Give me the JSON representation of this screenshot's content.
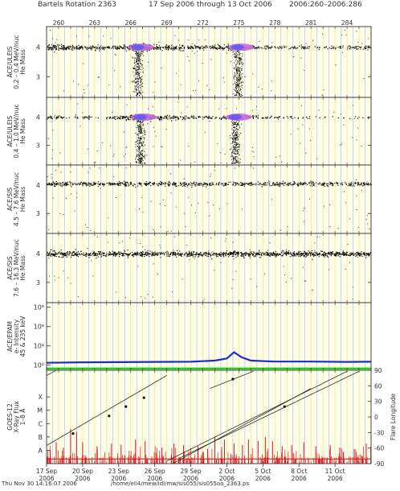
{
  "header": {
    "title": "Bartels Rotation 2363",
    "date_range": "17 Sep 2006  through 13 Oct 2006",
    "doy_range": "2006:260–2006:286"
  },
  "footer": {
    "timestamp": "Thu Nov 30 14:16:07 2006",
    "path": "/home/eli4/mew/idl/mw/sis055/sis055oo_2363.ps"
  },
  "colors": {
    "panel_bg": "#fefde8",
    "grid_yellow": "#e9e57a",
    "grid_blue": "#a5b8e8",
    "density_hi": "#6a5cf0",
    "density_mid": "#c86bd8",
    "epam_line": "#1a2fc4",
    "green_line": "#19d419",
    "xray_red": "#e0141e"
  },
  "chart_data": [
    {
      "type": "scatter",
      "id": "p1",
      "ylabel_lines": [
        "ACE/ULEIS",
        "0.2 – 0.4 MeV/nuc",
        "He Mass"
      ],
      "ylim": [
        2.3,
        4.7
      ],
      "yticks": [
        "3",
        "4"
      ],
      "xlim": [
        259,
        286
      ],
      "top_doy_ticks": [
        "260",
        "263",
        "266",
        "269",
        "272",
        "275",
        "278",
        "281",
        "284"
      ],
      "band_center": 4.0,
      "activity": [
        {
          "x": 259.5,
          "level": 0.9
        },
        {
          "x": 261.5,
          "level": 0.7
        },
        {
          "x": 264,
          "level": 0.5
        },
        {
          "x": 266.5,
          "level": 1.0
        },
        {
          "x": 269,
          "level": 0.8
        },
        {
          "x": 272,
          "level": 0.4
        },
        {
          "x": 274.5,
          "level": 0.9
        },
        {
          "x": 277,
          "level": 0.4
        },
        {
          "x": 281,
          "level": 0.25
        },
        {
          "x": 285.5,
          "level": 0.3
        }
      ],
      "dense_peaks": [
        266.6,
        274.9
      ]
    },
    {
      "type": "scatter",
      "id": "p2",
      "ylabel_lines": [
        "ACE/ULEIS",
        "0.4 – 1.0 MeV/nuc",
        "He Mass"
      ],
      "ylim": [
        2.3,
        4.7
      ],
      "yticks": [
        "3",
        "4"
      ],
      "xlim": [
        259,
        286
      ],
      "band_center": 4.0,
      "activity": [
        {
          "x": 259.5,
          "level": 0.25
        },
        {
          "x": 262,
          "level": 0.2
        },
        {
          "x": 264,
          "level": 0.15
        },
        {
          "x": 266.5,
          "level": 0.9
        },
        {
          "x": 269,
          "level": 0.6
        },
        {
          "x": 272,
          "level": 0.15
        },
        {
          "x": 274.5,
          "level": 0.7
        },
        {
          "x": 277,
          "level": 0.2
        },
        {
          "x": 282,
          "level": 0.08
        }
      ],
      "dense_peaks": [
        266.8,
        274.7
      ]
    },
    {
      "type": "scatter",
      "id": "p3",
      "ylabel_lines": [
        "ACE/SIS",
        "4.5 – 7.6 MeV/nuc",
        "He Mass"
      ],
      "ylim": [
        2.3,
        4.7
      ],
      "yticks": [
        "3",
        "4"
      ],
      "xlim": [
        259,
        286
      ],
      "band_center": 4.05,
      "activity": [
        {
          "x": 259,
          "level": 0.5
        },
        {
          "x": 286,
          "level": 0.5
        }
      ],
      "dense_peaks": []
    },
    {
      "type": "scatter",
      "id": "p4",
      "ylabel_lines": [
        "ACE/SIS",
        "7.6 – 16.3 MeV/nuc",
        "He Mass"
      ],
      "ylim": [
        2.3,
        4.7
      ],
      "yticks": [
        "3",
        "4"
      ],
      "xlim": [
        259,
        286
      ],
      "band_center": 4.0,
      "activity": [
        {
          "x": 259,
          "level": 0.85
        },
        {
          "x": 286,
          "level": 0.85
        }
      ],
      "dense_peaks": []
    },
    {
      "type": "line",
      "id": "p5",
      "ylabel_lines": [
        "ACE/EPAM",
        "e- Intensity",
        "45 & 235 keV"
      ],
      "ylog": true,
      "ylim": [
        30,
        300000000
      ],
      "yticks": [
        {
          "value": 100,
          "label": "10²"
        },
        {
          "value": 10000,
          "label": "10⁴"
        },
        {
          "value": 1000000,
          "label": "10⁶"
        },
        {
          "value": 100000000,
          "label": "10⁸"
        }
      ],
      "xlim": [
        259,
        286
      ],
      "series": [
        {
          "color": "#1a2fc4",
          "points": [
            [
              259,
              180
            ],
            [
              262,
              200
            ],
            [
              265,
              210
            ],
            [
              268,
              220
            ],
            [
              271,
              230
            ],
            [
              273,
              300
            ],
            [
              274,
              500
            ],
            [
              274.6,
              2200
            ],
            [
              275.2,
              700
            ],
            [
              276,
              300
            ],
            [
              278,
              240
            ],
            [
              281,
              240
            ],
            [
              284,
              220
            ],
            [
              286,
              230
            ]
          ]
        },
        {
          "color": "#19d419",
          "points": [
            [
              259,
              45
            ],
            [
              286,
              45
            ]
          ]
        }
      ]
    },
    {
      "type": "line",
      "id": "p6",
      "ylabel_lines": [
        "GOES-12",
        "X-Ray Flux",
        "1–8 Å"
      ],
      "ylim": [
        0,
        7
      ],
      "yticks": [
        "A",
        "B",
        "C",
        "M",
        "X"
      ],
      "right_axis_label": "Flare Longitude",
      "right_ylim": [
        -90,
        90
      ],
      "right_yticks": [
        "90",
        "60",
        "30",
        "0",
        "-30",
        "-60",
        "-90"
      ],
      "xlim": [
        259,
        286
      ],
      "date_ticks": [
        {
          "x": 259,
          "label": "17 Sep",
          "year": "2006"
        },
        {
          "x": 262,
          "label": "20 Sep",
          "year": "2006"
        },
        {
          "x": 265,
          "label": "23 Sep",
          "year": "2006"
        },
        {
          "x": 268,
          "label": "26 Sep",
          "year": "2006"
        },
        {
          "x": 271,
          "label": "29 Sep",
          "year": "2006"
        },
        {
          "x": 274,
          "label": "2 Oct",
          "year": "2006"
        },
        {
          "x": 277,
          "label": "5 Oct",
          "year": "2006"
        },
        {
          "x": 280,
          "label": "8 Oct",
          "year": "2006"
        },
        {
          "x": 283,
          "label": "11 Oct",
          "year": "2006"
        }
      ],
      "flux_points": [
        [
          259.3,
          1.0
        ],
        [
          259.8,
          1.6
        ],
        [
          260.4,
          1.2
        ],
        [
          261.0,
          2.6
        ],
        [
          261.5,
          2.4
        ],
        [
          262.0,
          1.6
        ],
        [
          263.2,
          1.3
        ],
        [
          264.4,
          1.5
        ],
        [
          265.2,
          1.4
        ],
        [
          266.4,
          1.8
        ],
        [
          267.2,
          1.7
        ],
        [
          268.6,
          1.2
        ],
        [
          269.6,
          1.5
        ],
        [
          270.4,
          1.4
        ],
        [
          271.6,
          1.3
        ],
        [
          272.4,
          1.1
        ],
        [
          273.0,
          2.0
        ],
        [
          273.8,
          1.8
        ],
        [
          274.6,
          1.5
        ],
        [
          275.3,
          1.4
        ],
        [
          275.8,
          1.8
        ],
        [
          276.6,
          1.7
        ],
        [
          277.2,
          2.0
        ],
        [
          277.8,
          1.7
        ],
        [
          278.6,
          1.3
        ],
        [
          279.4,
          1.4
        ],
        [
          280.4,
          1.6
        ],
        [
          281.4,
          1.3
        ],
        [
          282.6,
          1.4
        ],
        [
          283.4,
          1.2
        ],
        [
          284.6,
          1.1
        ],
        [
          285.6,
          1.5
        ]
      ],
      "flare_tracks": [
        {
          "x1": 259.0,
          "y1": -55,
          "x2": 269.0,
          "y2": 80
        },
        {
          "x1": 259.0,
          "y1": 80,
          "x2": 259.8,
          "y2": 90
        },
        {
          "x1": 272.6,
          "y1": 55,
          "x2": 276.2,
          "y2": 88
        },
        {
          "x1": 270.0,
          "y1": -80,
          "x2": 285.0,
          "y2": 88
        },
        {
          "x1": 269.0,
          "y1": -85,
          "x2": 284.0,
          "y2": 88
        },
        {
          "x1": 269.5,
          "y1": -90,
          "x2": 281.0,
          "y2": 55
        }
      ],
      "flare_points": [
        {
          "x": 261.2,
          "y": -32
        },
        {
          "x": 264.2,
          "y": 2
        },
        {
          "x": 265.6,
          "y": 20
        },
        {
          "x": 267.1,
          "y": 37
        },
        {
          "x": 274.5,
          "y": 73
        },
        {
          "x": 278.8,
          "y": 20
        }
      ]
    }
  ]
}
